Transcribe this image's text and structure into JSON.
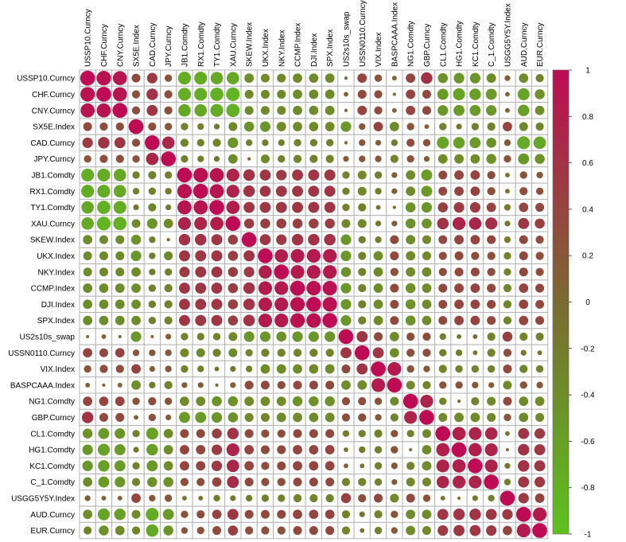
{
  "chart_data": {
    "type": "heatmap",
    "glyph": "circle",
    "title": "",
    "variables": [
      "USSP10.Curncy",
      "CHF.Curncy",
      "CNY.Curncy",
      "SX5E.Index",
      "CAD.Curncy",
      "JPY.Curncy",
      "JB1.Comdty",
      "RX1.Comdty",
      "TY1.Comdty",
      "XAU.Curncy",
      "SKEW.Index",
      "UKX.Index",
      "NKY.Index",
      "CCMP.Index",
      "DJI.Index",
      "SPX.Index",
      "US2s10s_swap",
      "USSN0110.Curncy",
      "VIX.Index",
      "BASPCAAA.Index",
      "NG1.Comdty",
      "GBP.Curncy",
      "CL1.Comdty",
      "HG1.Comdty",
      "KC1.Comdty",
      "C_1.Comdty",
      "USGG5Y5Y.Index",
      "AUD.Curncy",
      "EUR.Curncy"
    ],
    "matrix": [
      [
        1.0,
        0.95,
        0.9,
        0.35,
        0.5,
        0.25,
        -0.75,
        -0.75,
        -0.7,
        -0.7,
        -0.4,
        -0.35,
        -0.35,
        -0.4,
        -0.4,
        -0.4,
        0.05,
        0.4,
        0.25,
        0.1,
        0.4,
        0.6,
        -0.45,
        -0.5,
        -0.5,
        -0.4,
        0.15,
        -0.4,
        -0.3
      ],
      [
        0.95,
        1.0,
        0.9,
        0.3,
        0.6,
        0.3,
        -0.75,
        -0.75,
        -0.8,
        -0.85,
        -0.35,
        -0.35,
        -0.35,
        -0.4,
        -0.4,
        -0.4,
        0.1,
        0.35,
        0.3,
        0.05,
        0.4,
        0.35,
        -0.55,
        -0.65,
        -0.6,
        -0.55,
        0.1,
        -0.65,
        -0.45
      ],
      [
        0.9,
        0.9,
        1.0,
        0.3,
        0.55,
        0.3,
        -0.7,
        -0.7,
        -0.75,
        -0.8,
        -0.35,
        -0.35,
        -0.35,
        -0.4,
        -0.4,
        -0.4,
        0.05,
        0.4,
        0.3,
        0.1,
        0.4,
        0.35,
        -0.5,
        -0.55,
        -0.55,
        -0.5,
        0.1,
        -0.6,
        -0.4
      ],
      [
        0.35,
        0.3,
        0.3,
        1.0,
        0.3,
        0.25,
        -0.25,
        -0.2,
        -0.15,
        -0.35,
        -0.45,
        -0.5,
        -0.4,
        -0.4,
        -0.4,
        -0.4,
        -0.5,
        0.2,
        0.4,
        -0.4,
        0.25,
        0.1,
        -0.25,
        -0.15,
        -0.25,
        -0.3,
        0.4,
        -0.35,
        -0.3
      ],
      [
        0.5,
        0.6,
        0.55,
        0.3,
        1.0,
        0.7,
        -0.3,
        -0.25,
        -0.3,
        -0.5,
        -0.2,
        -0.2,
        -0.2,
        -0.25,
        -0.25,
        -0.25,
        0.05,
        0.2,
        0.15,
        -0.2,
        0.3,
        0.25,
        -0.65,
        -0.6,
        -0.55,
        -0.45,
        0.2,
        -0.75,
        -0.7
      ],
      [
        0.25,
        0.3,
        0.3,
        0.25,
        0.7,
        1.0,
        -0.25,
        -0.2,
        -0.15,
        -0.4,
        0.05,
        -0.35,
        -0.25,
        -0.3,
        -0.3,
        -0.3,
        0.15,
        0.2,
        0.2,
        -0.3,
        0.25,
        0.15,
        -0.4,
        -0.4,
        -0.4,
        -0.45,
        0.25,
        -0.55,
        -0.45
      ],
      [
        -0.75,
        -0.75,
        -0.7,
        -0.25,
        -0.3,
        -0.25,
        1.0,
        0.95,
        0.9,
        0.75,
        0.6,
        0.55,
        0.5,
        0.55,
        0.55,
        0.55,
        -0.25,
        -0.35,
        -0.25,
        0.15,
        -0.4,
        -0.55,
        0.35,
        0.4,
        0.4,
        0.3,
        -0.1,
        0.25,
        0.2
      ],
      [
        -0.75,
        -0.75,
        -0.7,
        -0.2,
        -0.25,
        -0.2,
        0.95,
        1.0,
        0.9,
        0.75,
        0.6,
        0.55,
        0.55,
        0.55,
        0.55,
        0.55,
        -0.25,
        -0.35,
        -0.2,
        0.15,
        -0.4,
        -0.55,
        0.35,
        0.4,
        0.4,
        0.3,
        -0.1,
        0.3,
        0.25
      ],
      [
        -0.7,
        -0.8,
        -0.75,
        -0.15,
        -0.3,
        -0.15,
        0.9,
        0.9,
        1.0,
        0.8,
        0.55,
        0.55,
        0.55,
        0.55,
        0.55,
        0.55,
        -0.25,
        -0.3,
        -0.1,
        0.05,
        -0.45,
        -0.5,
        0.45,
        0.5,
        0.5,
        0.4,
        -0.2,
        0.4,
        0.35
      ],
      [
        -0.7,
        -0.85,
        -0.8,
        -0.35,
        -0.5,
        -0.4,
        0.75,
        0.75,
        0.8,
        1.0,
        0.45,
        0.45,
        0.45,
        0.45,
        0.45,
        0.45,
        -0.35,
        -0.35,
        -0.15,
        0.15,
        -0.45,
        -0.45,
        0.6,
        0.75,
        0.7,
        0.65,
        -0.15,
        0.55,
        0.45
      ],
      [
        -0.4,
        -0.35,
        -0.35,
        -0.45,
        -0.2,
        0.05,
        0.6,
        0.6,
        0.55,
        0.45,
        1.0,
        0.55,
        0.5,
        0.6,
        0.6,
        0.6,
        -0.5,
        -0.25,
        -0.2,
        0.35,
        -0.4,
        -0.35,
        0.35,
        0.4,
        0.4,
        0.35,
        -0.2,
        0.35,
        0.3
      ],
      [
        -0.35,
        -0.35,
        -0.35,
        -0.5,
        -0.2,
        -0.35,
        0.55,
        0.55,
        0.55,
        0.45,
        0.55,
        1.0,
        0.8,
        0.85,
        0.85,
        0.85,
        -0.5,
        -0.3,
        -0.4,
        0.35,
        -0.4,
        -0.35,
        0.3,
        0.35,
        0.3,
        0.3,
        -0.25,
        0.35,
        0.3
      ],
      [
        -0.35,
        -0.35,
        -0.35,
        -0.4,
        -0.2,
        -0.25,
        0.5,
        0.55,
        0.55,
        0.45,
        0.5,
        0.8,
        1.0,
        0.85,
        0.85,
        0.85,
        -0.45,
        -0.3,
        -0.4,
        0.3,
        -0.4,
        -0.4,
        0.3,
        0.35,
        0.35,
        0.3,
        -0.25,
        0.35,
        0.3
      ],
      [
        -0.4,
        -0.4,
        -0.4,
        -0.4,
        -0.25,
        -0.3,
        0.55,
        0.55,
        0.55,
        0.45,
        0.6,
        0.85,
        0.85,
        1.0,
        0.95,
        0.95,
        -0.5,
        -0.3,
        -0.4,
        0.35,
        -0.45,
        -0.4,
        0.35,
        0.4,
        0.4,
        0.35,
        -0.3,
        0.4,
        0.35
      ],
      [
        -0.4,
        -0.4,
        -0.4,
        -0.4,
        -0.25,
        -0.3,
        0.55,
        0.55,
        0.55,
        0.45,
        0.6,
        0.85,
        0.85,
        0.95,
        1.0,
        0.95,
        -0.5,
        -0.3,
        -0.4,
        0.35,
        -0.45,
        -0.4,
        0.35,
        0.4,
        0.4,
        0.35,
        -0.3,
        0.4,
        0.35
      ],
      [
        -0.4,
        -0.4,
        -0.4,
        -0.4,
        -0.25,
        -0.3,
        0.55,
        0.55,
        0.55,
        0.45,
        0.6,
        0.85,
        0.85,
        0.95,
        0.95,
        1.0,
        -0.5,
        -0.3,
        -0.4,
        0.35,
        -0.45,
        -0.4,
        0.35,
        0.4,
        0.4,
        0.35,
        -0.3,
        0.4,
        0.35
      ],
      [
        0.05,
        0.1,
        0.05,
        -0.5,
        0.05,
        0.15,
        -0.25,
        -0.25,
        -0.25,
        -0.35,
        -0.5,
        -0.5,
        -0.45,
        -0.5,
        -0.5,
        -0.5,
        1.0,
        0.55,
        0.35,
        -0.4,
        0.3,
        0.3,
        -0.2,
        -0.1,
        0.1,
        -0.3,
        0.45,
        -0.3,
        -0.3
      ],
      [
        0.4,
        0.35,
        0.4,
        0.2,
        0.2,
        0.2,
        -0.35,
        -0.35,
        -0.3,
        -0.35,
        -0.25,
        -0.3,
        -0.3,
        -0.3,
        -0.3,
        -0.3,
        0.55,
        1.0,
        0.55,
        -0.4,
        0.3,
        0.3,
        -0.25,
        -0.2,
        -0.1,
        -0.3,
        0.3,
        -0.15,
        -0.1
      ],
      [
        0.25,
        0.3,
        0.3,
        0.4,
        0.15,
        0.2,
        -0.25,
        -0.2,
        -0.1,
        -0.15,
        -0.2,
        -0.4,
        -0.4,
        -0.4,
        -0.4,
        -0.4,
        0.35,
        0.55,
        1.0,
        0.85,
        0.25,
        0.2,
        -0.3,
        -0.25,
        -0.25,
        -0.25,
        0.35,
        -0.3,
        -0.25
      ],
      [
        0.1,
        0.05,
        0.1,
        -0.4,
        -0.2,
        -0.3,
        0.15,
        0.15,
        0.05,
        0.15,
        0.35,
        0.35,
        0.3,
        0.35,
        0.35,
        0.35,
        -0.4,
        -0.4,
        0.85,
        1.0,
        -0.35,
        -0.3,
        0.25,
        0.25,
        0.2,
        0.15,
        -0.35,
        0.25,
        0.2
      ],
      [
        0.4,
        0.4,
        0.4,
        0.25,
        0.3,
        0.25,
        -0.4,
        -0.4,
        -0.45,
        -0.45,
        -0.4,
        -0.4,
        -0.4,
        -0.45,
        -0.45,
        -0.45,
        0.3,
        0.3,
        0.25,
        -0.35,
        1.0,
        0.75,
        -0.25,
        -0.05,
        -0.3,
        -0.35,
        0.35,
        -0.4,
        -0.4
      ],
      [
        0.6,
        0.35,
        0.35,
        0.1,
        0.25,
        0.15,
        -0.55,
        -0.55,
        -0.5,
        -0.45,
        -0.35,
        -0.35,
        -0.4,
        -0.4,
        -0.4,
        -0.4,
        0.3,
        0.3,
        0.2,
        -0.3,
        0.75,
        1.0,
        -0.35,
        -0.4,
        -0.4,
        -0.35,
        0.25,
        -0.4,
        -0.35
      ],
      [
        -0.45,
        -0.55,
        -0.5,
        -0.25,
        -0.65,
        -0.4,
        0.35,
        0.35,
        0.45,
        0.6,
        0.35,
        0.3,
        0.3,
        0.35,
        0.35,
        0.35,
        -0.2,
        -0.25,
        -0.3,
        0.25,
        -0.25,
        -0.35,
        1.0,
        0.8,
        0.75,
        0.7,
        -0.1,
        0.55,
        0.5
      ],
      [
        -0.5,
        -0.65,
        -0.55,
        -0.15,
        -0.6,
        -0.4,
        0.4,
        0.4,
        0.5,
        0.75,
        0.4,
        0.35,
        0.35,
        0.4,
        0.4,
        0.4,
        -0.1,
        -0.2,
        -0.25,
        0.25,
        -0.05,
        -0.4,
        0.8,
        1.0,
        0.8,
        0.75,
        -0.05,
        0.6,
        0.55
      ],
      [
        -0.5,
        -0.6,
        -0.55,
        -0.25,
        -0.55,
        -0.4,
        0.4,
        0.4,
        0.5,
        0.7,
        0.4,
        0.3,
        0.35,
        0.4,
        0.4,
        0.4,
        0.1,
        -0.1,
        -0.25,
        0.2,
        -0.3,
        -0.4,
        0.75,
        0.8,
        1.0,
        0.75,
        -0.15,
        0.6,
        0.55
      ],
      [
        -0.4,
        -0.55,
        -0.5,
        -0.3,
        -0.45,
        -0.45,
        0.3,
        0.3,
        0.4,
        0.65,
        0.35,
        0.3,
        0.3,
        0.35,
        0.35,
        0.35,
        -0.3,
        -0.3,
        -0.25,
        0.15,
        -0.35,
        -0.35,
        0.7,
        0.75,
        0.75,
        1.0,
        -0.2,
        0.55,
        0.5
      ],
      [
        0.15,
        0.1,
        0.1,
        0.4,
        0.2,
        0.25,
        -0.1,
        -0.1,
        -0.2,
        -0.15,
        -0.2,
        -0.25,
        -0.25,
        -0.3,
        -0.3,
        -0.3,
        0.45,
        0.3,
        0.35,
        -0.35,
        0.35,
        0.25,
        -0.1,
        -0.05,
        -0.15,
        -0.2,
        1.0,
        0.5,
        0.4
      ],
      [
        -0.4,
        -0.65,
        -0.6,
        -0.35,
        -0.75,
        -0.55,
        0.25,
        0.3,
        0.4,
        0.55,
        0.35,
        0.35,
        0.35,
        0.4,
        0.4,
        0.4,
        -0.3,
        -0.15,
        -0.3,
        0.25,
        -0.4,
        -0.4,
        0.55,
        0.6,
        0.6,
        0.55,
        0.5,
        1.0,
        0.85
      ],
      [
        -0.3,
        -0.45,
        -0.4,
        -0.3,
        -0.7,
        -0.45,
        0.2,
        0.25,
        0.35,
        0.45,
        0.3,
        0.3,
        0.3,
        0.35,
        0.35,
        0.35,
        -0.3,
        -0.1,
        -0.25,
        0.2,
        -0.4,
        -0.35,
        0.5,
        0.55,
        0.55,
        0.5,
        0.4,
        0.85,
        1.0
      ]
    ],
    "color_scale": {
      "min": -1,
      "max": 1,
      "low_color": "#5cc21f",
      "mid_color": "#7a6a32",
      "high_color": "#bd0c53",
      "ticks": [
        "1",
        "0.8",
        "0.6",
        "0.4",
        "0.2",
        "0",
        "-0.2",
        "-0.4",
        "-0.6",
        "-0.8",
        "-1"
      ]
    }
  }
}
